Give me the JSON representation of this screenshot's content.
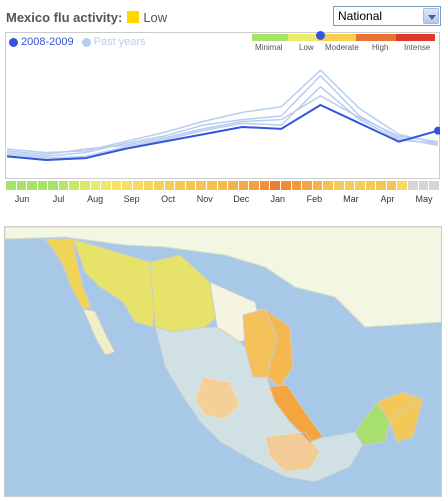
{
  "header": {
    "title": "Mexico flu activity:",
    "level_label": "Low",
    "level_color": "#ffd800"
  },
  "region_select": {
    "selected": "National"
  },
  "legend": {
    "current": {
      "label": "2008-2009",
      "color": "#3355dd"
    },
    "past": {
      "label": "Past years",
      "color": "#b8cdf0"
    }
  },
  "scale": {
    "labels": [
      "Minimal",
      "Low",
      "Moderate",
      "High",
      "Intense"
    ],
    "colors": [
      "#a6e36b",
      "#e9ec6a",
      "#f8cf4e",
      "#f5a43d",
      "#ea7233",
      "#dd3a2b"
    ]
  },
  "chart_data": {
    "type": "line",
    "x": [
      "Jun",
      "Jul",
      "Aug",
      "Sep",
      "Oct",
      "Nov",
      "Dec",
      "Jan",
      "Feb",
      "Mar",
      "Apr",
      "May"
    ],
    "series": [
      {
        "name": "2008-2009",
        "values": [
          0.8,
          0.6,
          0.7,
          1.2,
          1.6,
          2.0,
          2.4,
          2.3,
          3.6,
          2.6,
          1.6,
          2.2
        ]
      },
      {
        "name": "Past years",
        "values": [
          1.0,
          0.8,
          1.0,
          1.5,
          1.9,
          2.5,
          2.8,
          3.0,
          5.2,
          3.0,
          1.8,
          1.4
        ]
      },
      {
        "name": "Past years",
        "values": [
          1.2,
          1.0,
          1.1,
          1.6,
          2.1,
          2.7,
          3.2,
          3.5,
          5.5,
          3.4,
          2.0,
          1.5
        ]
      },
      {
        "name": "Past years",
        "values": [
          0.9,
          0.7,
          0.8,
          1.3,
          1.7,
          2.2,
          2.6,
          2.5,
          4.6,
          2.8,
          1.7,
          1.5
        ]
      },
      {
        "name": "Past years",
        "values": [
          1.1,
          0.9,
          1.2,
          1.4,
          1.8,
          2.3,
          2.7,
          2.8,
          4.1,
          2.9,
          1.9,
          1.6
        ]
      }
    ],
    "ylim": [
      0,
      6
    ]
  },
  "activity_strip": [
    "#a6e36b",
    "#a6e36b",
    "#a6e36b",
    "#a6e36b",
    "#a6e36b",
    "#b9e56a",
    "#c8e86a",
    "#d9ea69",
    "#e6eb69",
    "#eeea68",
    "#f2e569",
    "#f3e06a",
    "#f3dc66",
    "#f4d65e",
    "#f5d05a",
    "#f5cc58",
    "#f5c957",
    "#f5c656",
    "#f5c455",
    "#f5bf52",
    "#f5b94e",
    "#f5b24a",
    "#f4aa46",
    "#f2a042",
    "#ef903c",
    "#ec7d36",
    "#ee8a39",
    "#f09a3e",
    "#f2a743",
    "#f3b44b",
    "#f4c253",
    "#f5cc58",
    "#f5cc58",
    "#f5cc58",
    "#f5c957",
    "#f5c656",
    "#f5c455",
    "#f7d860",
    "#d6d6d6",
    "#d6d6d6",
    "#d6d6d6"
  ],
  "map": {
    "ocean_color": "#a8c8e8",
    "us_color": "#f4f6e4",
    "states": [
      {
        "name": "baja-california",
        "color": "#f0d458"
      },
      {
        "name": "baja-california-sur",
        "color": "#f0f0c8"
      },
      {
        "name": "sonora",
        "color": "#e6e26a"
      },
      {
        "name": "chihuahua",
        "color": "#e6e26a"
      },
      {
        "name": "coahuila",
        "color": "#f4f4e0"
      },
      {
        "name": "nuevo-leon",
        "color": "#f4c05a"
      },
      {
        "name": "tamaulipas",
        "color": "#f5b850"
      },
      {
        "name": "jalisco",
        "color": "#f5a540"
      },
      {
        "name": "veracruz",
        "color": "#f5a540"
      },
      {
        "name": "oaxaca",
        "color": "#f39a3c"
      },
      {
        "name": "campeche",
        "color": "#a8e070"
      },
      {
        "name": "yucatan",
        "color": "#f2c858"
      },
      {
        "name": "quintana-roo",
        "color": "#f2c858"
      }
    ]
  }
}
